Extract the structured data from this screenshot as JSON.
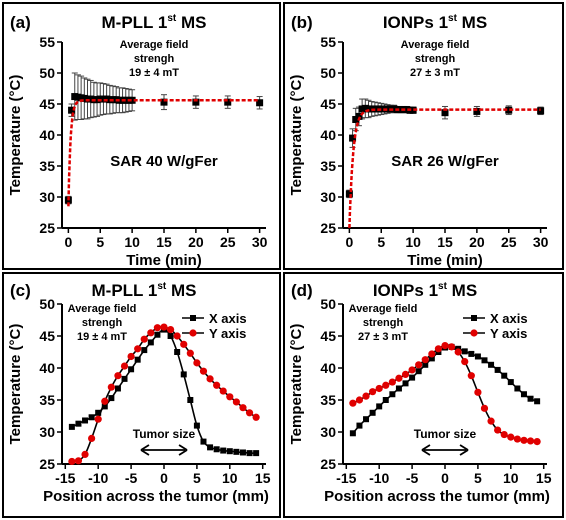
{
  "chart_data": [
    {
      "type": "scatter",
      "panel_label": "(a)",
      "title": "M-PLL 1",
      "title_sup": "st",
      "title_suffix": " MS",
      "note_lines": [
        "Average field",
        "strengh",
        "19 ± 4 mT"
      ],
      "center_text": "SAR 40 W/gFer",
      "xlabel": "Time (min)",
      "ylabel": "Temperature (°C)",
      "xlim": [
        -1,
        31
      ],
      "ylim": [
        25,
        55
      ],
      "xticks": [
        0,
        5,
        10,
        15,
        20,
        25,
        30
      ],
      "yticks": [
        25,
        30,
        35,
        40,
        45,
        50,
        55
      ],
      "marker": "square",
      "series": [
        {
          "x": [
            0,
            0.5,
            1,
            1.5,
            2,
            2.5,
            3,
            3.5,
            4,
            4.5,
            5,
            5.5,
            6,
            6.5,
            7,
            7.5,
            8,
            8.5,
            9,
            9.5,
            10,
            15,
            20,
            25,
            30
          ],
          "y": [
            29.5,
            44.0,
            46.2,
            46.1,
            46.0,
            45.9,
            45.8,
            45.8,
            45.7,
            45.7,
            45.8,
            45.8,
            45.8,
            45.7,
            45.7,
            45.7,
            45.6,
            45.6,
            45.6,
            45.6,
            45.6,
            45.3,
            45.3,
            45.3,
            45.2
          ],
          "yerr": [
            0.6,
            1.0,
            3.8,
            3.6,
            3.5,
            3.3,
            3.2,
            3.0,
            2.8,
            2.7,
            2.6,
            2.5,
            2.4,
            2.3,
            2.2,
            2.1,
            2.0,
            2.0,
            1.9,
            1.8,
            1.7,
            1.2,
            1.0,
            1.0,
            1.0
          ]
        }
      ],
      "fit": {
        "color": "#e00000",
        "style": "dashed",
        "t0": 28.5,
        "tmax": 45.6,
        "tau": 0.35
      }
    },
    {
      "type": "scatter",
      "panel_label": "(b)",
      "title": "IONPs 1",
      "title_sup": "st",
      "title_suffix": " MS",
      "note_lines": [
        "Average field",
        "strengh",
        "27 ± 3 mT"
      ],
      "center_text": "SAR 26 W/gFer",
      "xlabel": "Time (min)",
      "ylabel": "Temperature (°C)",
      "xlim": [
        -1,
        31
      ],
      "ylim": [
        25,
        55
      ],
      "xticks": [
        0,
        5,
        10,
        15,
        20,
        25,
        30
      ],
      "yticks": [
        25,
        30,
        35,
        40,
        45,
        50,
        55
      ],
      "marker": "square",
      "series": [
        {
          "x": [
            0,
            0.5,
            1,
            1.5,
            2,
            2.5,
            3,
            3.5,
            4,
            4.5,
            5,
            5.5,
            6,
            6.5,
            7,
            7.5,
            8,
            8.5,
            9,
            9.5,
            10,
            15,
            20,
            25,
            30
          ],
          "y": [
            30.5,
            39.5,
            42.5,
            43.0,
            44.2,
            44.3,
            44.2,
            44.2,
            44.2,
            44.2,
            44.2,
            44.2,
            44.2,
            44.2,
            44.2,
            44.1,
            44.1,
            44.1,
            44.1,
            44.0,
            44.0,
            43.6,
            43.8,
            44.0,
            43.9
          ],
          "yerr": [
            0.6,
            1.5,
            1.8,
            1.5,
            1.6,
            1.5,
            1.4,
            1.2,
            1.1,
            1.0,
            0.9,
            0.8,
            0.7,
            0.6,
            0.6,
            0.5,
            0.5,
            0.5,
            0.5,
            0.5,
            0.5,
            1.0,
            0.8,
            0.7,
            0.6
          ]
        }
      ],
      "fit": {
        "color": "#e00000",
        "style": "dashed",
        "t0": 25.0,
        "tmax": 44.1,
        "tau": 0.6
      }
    },
    {
      "type": "line",
      "panel_label": "(c)",
      "title": "M-PLL 1",
      "title_sup": "st",
      "title_suffix": " MS",
      "note_lines": [
        "Average field",
        "strengh",
        "19 ± 4 mT"
      ],
      "tumor_label": "Tumor size",
      "tumor_range": [
        -3.5,
        3.5
      ],
      "xlabel": "Position across the tumor (mm)",
      "ylabel": "Temperature (°C)",
      "xlim": [
        -15.5,
        15.5
      ],
      "ylim": [
        25,
        50
      ],
      "xticks": [
        -15,
        -10,
        -5,
        0,
        5,
        10,
        15
      ],
      "yticks": [
        25,
        30,
        35,
        40,
        45,
        50
      ],
      "series": [
        {
          "name": "X axis",
          "marker": "square",
          "color": "#000000",
          "x": [
            -14,
            -13,
            -12,
            -11,
            -10,
            -9,
            -8,
            -7,
            -6,
            -5,
            -4,
            -3,
            -2,
            -1,
            0,
            1,
            2,
            3,
            4,
            5,
            6,
            7,
            8,
            9,
            10,
            11,
            12,
            13,
            14
          ],
          "y": [
            30.8,
            31.3,
            31.8,
            32.3,
            33.0,
            34.0,
            35.3,
            36.8,
            38.3,
            39.8,
            41.3,
            42.8,
            44.0,
            45.2,
            46.0,
            45.0,
            42.5,
            39.0,
            35.0,
            31.0,
            28.5,
            27.6,
            27.3,
            27.1,
            27.0,
            26.9,
            26.8,
            26.7,
            26.7
          ]
        },
        {
          "name": "Y axis",
          "marker": "circle",
          "color": "#e00000",
          "x": [
            -14,
            -13,
            -12,
            -11,
            -10,
            -9,
            -8,
            -7,
            -6,
            -5,
            -4,
            -3,
            -2,
            -1,
            0,
            1,
            2,
            3,
            4,
            5,
            6,
            7,
            8,
            9,
            10,
            11,
            12,
            13,
            14
          ],
          "y": [
            25.4,
            25.5,
            26.5,
            29.0,
            32.0,
            34.8,
            37.0,
            38.8,
            40.3,
            41.8,
            43.0,
            44.5,
            45.5,
            46.3,
            46.4,
            46.0,
            45.0,
            43.7,
            42.3,
            40.8,
            39.5,
            38.3,
            37.3,
            36.4,
            35.5,
            34.7,
            33.8,
            33.0,
            32.3
          ]
        }
      ]
    },
    {
      "type": "line",
      "panel_label": "(d)",
      "title": "IONPs 1",
      "title_sup": "st",
      "title_suffix": " MS",
      "note_lines": [
        "Average field",
        "strengh",
        "27 ± 3 mT"
      ],
      "tumor_label": "Tumor size",
      "tumor_range": [
        -3.5,
        3.5
      ],
      "xlabel": "Position across the tumor (mm)",
      "ylabel": "Temperature (°C)",
      "xlim": [
        -15.5,
        15.5
      ],
      "ylim": [
        25,
        50
      ],
      "xticks": [
        -15,
        -10,
        -5,
        0,
        5,
        10,
        15
      ],
      "yticks": [
        25,
        30,
        35,
        40,
        45,
        50
      ],
      "series": [
        {
          "name": "X axis",
          "marker": "square",
          "color": "#000000",
          "x": [
            -14,
            -13,
            -12,
            -11,
            -10,
            -9,
            -8,
            -7,
            -6,
            -5,
            -4,
            -3,
            -2,
            -1,
            0,
            1,
            2,
            3,
            4,
            5,
            6,
            7,
            8,
            9,
            10,
            11,
            12,
            13,
            14
          ],
          "y": [
            29.8,
            31.0,
            32.0,
            33.0,
            34.0,
            35.0,
            35.9,
            36.8,
            37.6,
            38.5,
            39.5,
            40.5,
            41.5,
            42.5,
            43.2,
            43.3,
            43.0,
            42.6,
            42.2,
            41.8,
            41.2,
            40.5,
            39.7,
            38.8,
            37.8,
            36.8,
            35.9,
            35.2,
            34.8
          ]
        },
        {
          "name": "Y axis",
          "marker": "circle",
          "color": "#e00000",
          "x": [
            -14,
            -13,
            -12,
            -11,
            -10,
            -9,
            -8,
            -7,
            -6,
            -5,
            -4,
            -3,
            -2,
            -1,
            0,
            1,
            2,
            3,
            4,
            5,
            6,
            7,
            8,
            9,
            10,
            11,
            12,
            13,
            14
          ],
          "y": [
            34.5,
            35.0,
            35.6,
            36.3,
            36.8,
            37.3,
            37.8,
            38.4,
            39.0,
            39.7,
            40.5,
            41.3,
            42.2,
            43.0,
            43.5,
            43.3,
            42.5,
            41.0,
            38.8,
            36.2,
            33.7,
            31.7,
            30.3,
            29.6,
            29.2,
            28.9,
            28.7,
            28.6,
            28.5
          ]
        }
      ]
    }
  ]
}
